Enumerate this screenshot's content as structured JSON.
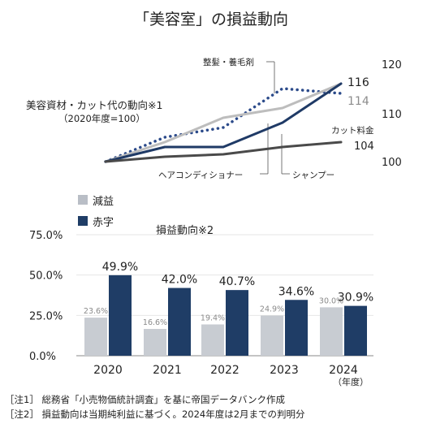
{
  "title": "「美容室」の損益動向",
  "top_chart": {
    "label_line1": "美容資材・カット代の動向※1",
    "label_line2": "（2020年度=100）",
    "y_ticks": [
      "120",
      "110",
      "100"
    ],
    "y_tick_values": [
      120,
      110,
      100
    ],
    "series_labels": {
      "styling": "整髪・養毛剤",
      "cut": "カット料金",
      "conditioner": "ヘアコンディショナー",
      "shampoo": "シャンプー"
    },
    "end_value_labels": {
      "upper": "116",
      "lower": "114",
      "cut": "104"
    }
  },
  "chart_data": [
    {
      "type": "line",
      "title": "美容資材・カット代の動向※1",
      "subtitle": "（2020年度=100）",
      "x": [
        "2020",
        "2021",
        "2022",
        "2023",
        "2024"
      ],
      "ylim": [
        100,
        120
      ],
      "yticks": [
        100,
        110,
        120
      ],
      "series": [
        {
          "name": "整髪・養毛剤",
          "style": "dotted",
          "color": "#2b4a8a",
          "values": [
            100,
            105,
            107,
            115,
            114
          ]
        },
        {
          "name": "ヘアコンディショナー",
          "style": "solid",
          "color": "#bdbdbd",
          "values": [
            100,
            104,
            109,
            111,
            116
          ]
        },
        {
          "name": "シャンプー",
          "style": "solid",
          "color": "#1f3a66",
          "values": [
            100,
            103,
            103,
            108,
            116
          ]
        },
        {
          "name": "カット料金",
          "style": "solid",
          "color": "#4a4a4a",
          "values": [
            100,
            101,
            101.5,
            103,
            104
          ]
        }
      ]
    },
    {
      "type": "bar",
      "title": "損益動向※2",
      "categories": [
        "2020",
        "2021",
        "2022",
        "2023",
        "2024"
      ],
      "category_suffix": "（年度）",
      "ylim": [
        0,
        75
      ],
      "yticks": [
        "0.0%",
        "25.0%",
        "50.0%",
        "75.0%"
      ],
      "ytick_values": [
        0,
        25,
        50,
        75
      ],
      "series": [
        {
          "name": "減益",
          "color": "#c8ccd2",
          "values": [
            23.6,
            16.6,
            19.4,
            24.9,
            30.0
          ],
          "labels": [
            "23.6%",
            "16.6%",
            "19.4%",
            "24.9%",
            "30.0%"
          ]
        },
        {
          "name": "赤字",
          "color": "#1f3d66",
          "values": [
            49.9,
            42.0,
            40.7,
            34.6,
            30.9
          ],
          "labels": [
            "49.9%",
            "42.0%",
            "40.7%",
            "34.6%",
            "30.9%"
          ]
        }
      ]
    }
  ],
  "bottom_chart": {
    "legend": [
      {
        "label": "減益",
        "color": "#b9bec6"
      },
      {
        "label": "赤字",
        "color": "#1f3d66"
      }
    ],
    "title": "損益動向※2",
    "year_unit": "（年度）"
  },
  "notes": [
    "［注1］ 総務省「小売物価統計調査」を基に帝国データバンク作成",
    "［注2］ 損益動向は当期純利益に基づく。2024年度は2月までの判明分"
  ]
}
